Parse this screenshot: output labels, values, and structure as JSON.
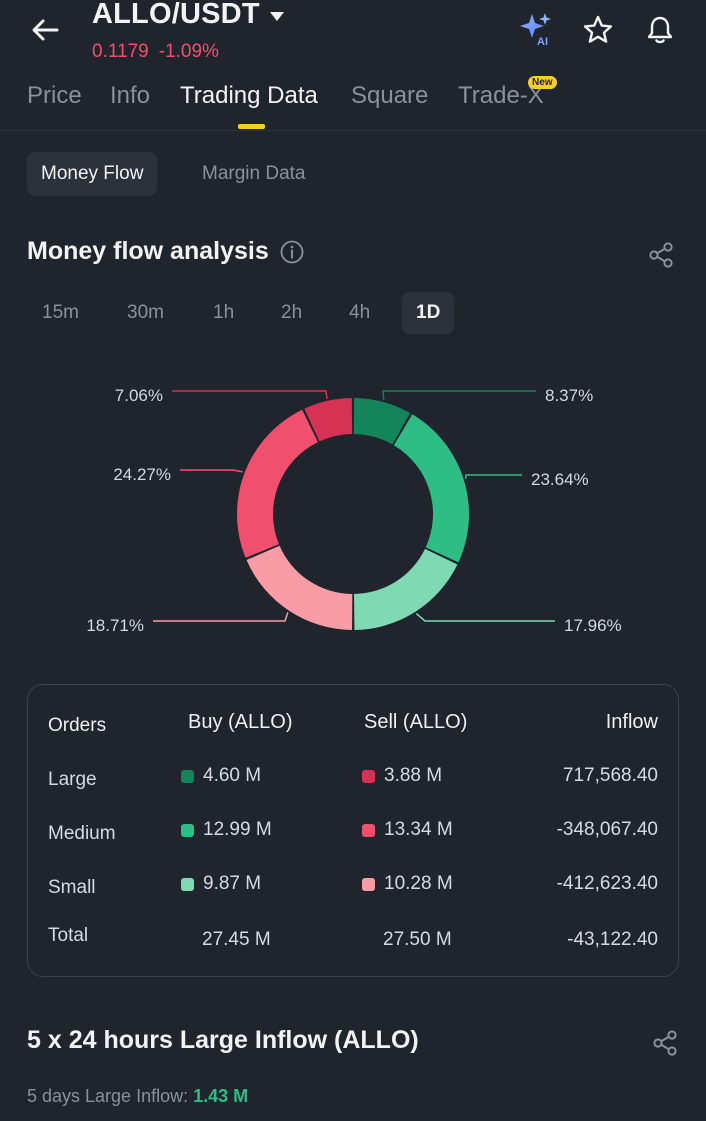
{
  "header": {
    "pair": "ALLO/USDT",
    "price": "0.1179",
    "change": "-1.09%",
    "icons": [
      "back-arrow-icon",
      "ai-sparkle-icon",
      "star-icon",
      "bell-icon"
    ]
  },
  "tabs": [
    {
      "label": "Price"
    },
    {
      "label": "Info"
    },
    {
      "label": "Trading Data"
    },
    {
      "label": "Square"
    },
    {
      "label": "Trade-X"
    }
  ],
  "new_badge": "New",
  "ai_badge": "AI",
  "subtabs": [
    {
      "label": "Money Flow"
    },
    {
      "label": "Margin Data"
    }
  ],
  "money_flow": {
    "title": "Money flow analysis",
    "intervals": [
      "15m",
      "30m",
      "1h",
      "2h",
      "4h",
      "1D"
    ],
    "active_interval": "1D"
  },
  "colors": {
    "large_buy": "#14855a",
    "medium_buy": "#2ebd85",
    "small_buy": "#7fd9b2",
    "large_sell": "#d63254",
    "medium_sell": "#f0506e",
    "small_sell": "#f99ca6",
    "accent": "#f4cf2a"
  },
  "chart_data": {
    "type": "pie",
    "categories": [
      "Large Buy",
      "Medium Buy",
      "Small Buy",
      "Small Sell",
      "Medium Sell",
      "Large Sell"
    ],
    "values": [
      8.37,
      23.64,
      17.96,
      18.71,
      24.27,
      7.06
    ],
    "labels": [
      "8.37%",
      "23.64%",
      "17.96%",
      "18.71%",
      "24.27%",
      "7.06%"
    ],
    "title": "Money flow analysis"
  },
  "orders_table": {
    "headers": {
      "orders": "Orders",
      "buy": "Buy (ALLO)",
      "sell": "Sell (ALLO)",
      "inflow": "Inflow"
    },
    "rows": [
      {
        "label": "Large",
        "buy": "4.60 M",
        "sell": "3.88 M",
        "inflow": "717,568.40"
      },
      {
        "label": "Medium",
        "buy": "12.99 M",
        "sell": "13.34 M",
        "inflow": "-348,067.40"
      },
      {
        "label": "Small",
        "buy": "9.87 M",
        "sell": "10.28 M",
        "inflow": "-412,623.40"
      }
    ],
    "total": {
      "label": "Total",
      "buy": "27.45 M",
      "sell": "27.50 M",
      "inflow": "-43,122.40"
    }
  },
  "large_inflow": {
    "title": "5 x 24 hours Large Inflow (ALLO)",
    "sub_label": "5 days Large Inflow:",
    "sub_value": "1.43 M"
  }
}
